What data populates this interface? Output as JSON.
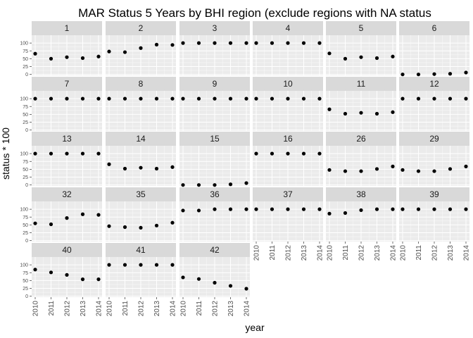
{
  "chart_data": {
    "type": "scatter",
    "title": "MAR Status 5 Years by BHI region (exclude regions with NA status",
    "xlabel": "year",
    "ylabel": "status * 100",
    "x": [
      2010,
      2011,
      2012,
      2013,
      2014
    ],
    "x_tick_labels": [
      "2010",
      "2011",
      "2012",
      "2013",
      "2014"
    ],
    "y_ticks": [
      0,
      25,
      50,
      75,
      100
    ],
    "y_tick_labels": [
      "0",
      "25",
      "50",
      "75",
      "100"
    ],
    "ylim": [
      -3,
      125
    ],
    "panel_background": "#ebebeb",
    "strip_background": "#d9d9d9",
    "grid_color": "#ffffff",
    "point_color": "#000000",
    "facets": [
      {
        "label": "1",
        "values": [
          66,
          50,
          55,
          52,
          57
        ]
      },
      {
        "label": "2",
        "values": [
          73,
          71,
          84,
          95,
          94
        ]
      },
      {
        "label": "3",
        "values": [
          100,
          100,
          100,
          100,
          100
        ]
      },
      {
        "label": "4",
        "values": [
          100,
          100,
          100,
          100,
          100
        ]
      },
      {
        "label": "5",
        "values": [
          67,
          50,
          55,
          52,
          57
        ]
      },
      {
        "label": "6",
        "values": [
          0,
          0,
          1,
          2,
          6
        ]
      },
      {
        "label": "7",
        "values": [
          100,
          100,
          100,
          100,
          100
        ]
      },
      {
        "label": "8",
        "values": [
          100,
          100,
          100,
          100,
          100
        ]
      },
      {
        "label": "9",
        "values": [
          100,
          100,
          100,
          100,
          100
        ]
      },
      {
        "label": "10",
        "values": [
          100,
          100,
          100,
          100,
          100
        ]
      },
      {
        "label": "11",
        "values": [
          66,
          52,
          55,
          52,
          57
        ]
      },
      {
        "label": "12",
        "values": [
          100,
          100,
          100,
          100,
          100
        ]
      },
      {
        "label": "13",
        "values": [
          100,
          100,
          100,
          100,
          100
        ]
      },
      {
        "label": "14",
        "values": [
          66,
          52,
          55,
          52,
          57
        ]
      },
      {
        "label": "15",
        "values": [
          0,
          0,
          0,
          2,
          6
        ]
      },
      {
        "label": "16",
        "values": [
          100,
          100,
          100,
          100,
          100
        ]
      },
      {
        "label": "26",
        "values": [
          48,
          44,
          44,
          51,
          59
        ]
      },
      {
        "label": "29",
        "values": [
          48,
          44,
          44,
          51,
          59
        ]
      },
      {
        "label": "32",
        "values": [
          55,
          52,
          72,
          84,
          82
        ]
      },
      {
        "label": "35",
        "values": [
          46,
          43,
          41,
          48,
          57
        ]
      },
      {
        "label": "36",
        "values": [
          96,
          96,
          100,
          100,
          100
        ]
      },
      {
        "label": "37",
        "values": [
          100,
          100,
          100,
          100,
          100
        ]
      },
      {
        "label": "38",
        "values": [
          86,
          88,
          97,
          100,
          100
        ]
      },
      {
        "label": "39",
        "values": [
          100,
          100,
          100,
          100,
          100
        ]
      },
      {
        "label": "40",
        "values": [
          85,
          76,
          68,
          54,
          54
        ]
      },
      {
        "label": "41",
        "values": [
          100,
          100,
          100,
          100,
          100
        ]
      },
      {
        "label": "42",
        "values": [
          60,
          55,
          43,
          33,
          24
        ]
      }
    ]
  }
}
